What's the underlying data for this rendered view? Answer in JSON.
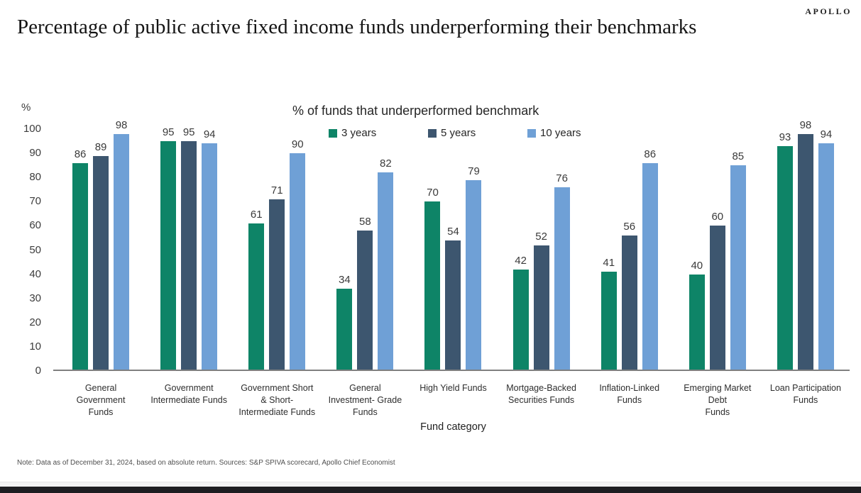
{
  "brand": {
    "logo": "APOLLO"
  },
  "title": "Percentage of public active fixed income funds underperforming their benchmarks",
  "footnote": "Note: Data as of December 31, 2024, based on absolute return. Sources: S&P SPIVA scorecard, Apollo Chief Economist",
  "chart_data": {
    "type": "bar",
    "legend_title": "% of funds that underperformed benchmark",
    "unit_label": "%",
    "xlabel": "Fund category",
    "ylim": [
      0,
      100
    ],
    "ytick_step": 10,
    "grid": false,
    "legend_position": "top-center",
    "axis_color": "#808080",
    "categories": [
      {
        "label": "General Government Funds",
        "lines": [
          "General",
          "Government",
          "Funds"
        ]
      },
      {
        "label": "Government Intermediate Funds",
        "lines": [
          "Government",
          "Intermediate Funds"
        ]
      },
      {
        "label": "Government Short & Short-Intermediate Funds",
        "lines": [
          "Government Short",
          "& Short-",
          "Intermediate Funds"
        ]
      },
      {
        "label": "General Investment-Grade Funds",
        "lines": [
          "General",
          "Investment- Grade",
          "Funds"
        ]
      },
      {
        "label": "High Yield Funds",
        "lines": [
          "High Yield Funds"
        ]
      },
      {
        "label": "Mortgage-Backed Securities Funds",
        "lines": [
          "Mortgage-Backed",
          "Securities Funds"
        ]
      },
      {
        "label": "Inflation-Linked Funds",
        "lines": [
          "Inflation-Linked",
          "Funds"
        ]
      },
      {
        "label": "Emerging Market Debt Funds",
        "lines": [
          "Emerging Market",
          "Debt",
          "Funds"
        ]
      },
      {
        "label": "Loan Participation Funds",
        "lines": [
          "Loan Participation",
          "Funds"
        ]
      }
    ],
    "series": [
      {
        "name": "3 years",
        "color": "#0e8467",
        "values": [
          86,
          95,
          61,
          34,
          70,
          42,
          41,
          40,
          93
        ]
      },
      {
        "name": "5 years",
        "color": "#3d566f",
        "values": [
          89,
          95,
          71,
          58,
          54,
          52,
          56,
          60,
          98
        ]
      },
      {
        "name": "10 years",
        "color": "#6fa0d6",
        "values": [
          98,
          94,
          90,
          82,
          79,
          76,
          86,
          85,
          94
        ]
      }
    ]
  }
}
